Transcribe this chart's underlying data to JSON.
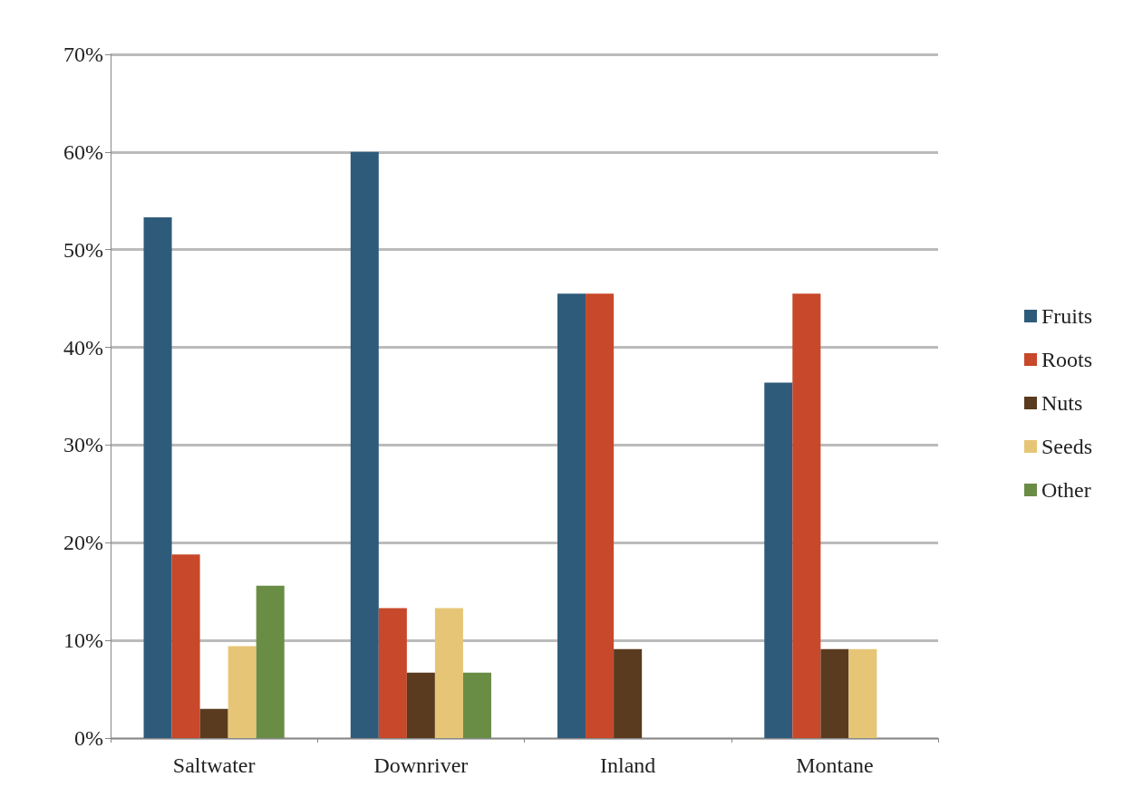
{
  "chart_data": {
    "type": "bar",
    "categories": [
      "Saltwater",
      "Downriver",
      "Inland",
      "Montane"
    ],
    "series": [
      {
        "name": "Fruits",
        "color": "#2f5b7a",
        "values": [
          53.3,
          60,
          45.5,
          36.4
        ]
      },
      {
        "name": "Roots",
        "color": "#c7482a",
        "values": [
          18.8,
          13.3,
          45.5,
          45.5
        ]
      },
      {
        "name": "Nuts",
        "color": "#5a3b1f",
        "values": [
          3,
          6.7,
          9.1,
          9.1
        ]
      },
      {
        "name": "Seeds",
        "color": "#e6c676",
        "values": [
          9.4,
          13.3,
          0,
          9.1
        ]
      },
      {
        "name": "Other",
        "color": "#6a8d45",
        "values": [
          15.6,
          6.7,
          0,
          0
        ]
      }
    ],
    "ylim": [
      0,
      70
    ],
    "yticks": [
      {
        "value": 0,
        "label": "0%"
      },
      {
        "value": 10,
        "label": "10%"
      },
      {
        "value": 20,
        "label": "20%"
      },
      {
        "value": 30,
        "label": "30%"
      },
      {
        "value": 40,
        "label": "40%"
      },
      {
        "value": 50,
        "label": "50%"
      },
      {
        "value": 60,
        "label": "60%"
      },
      {
        "value": 70,
        "label": "70%"
      }
    ],
    "grid": "y",
    "legend": "right"
  }
}
